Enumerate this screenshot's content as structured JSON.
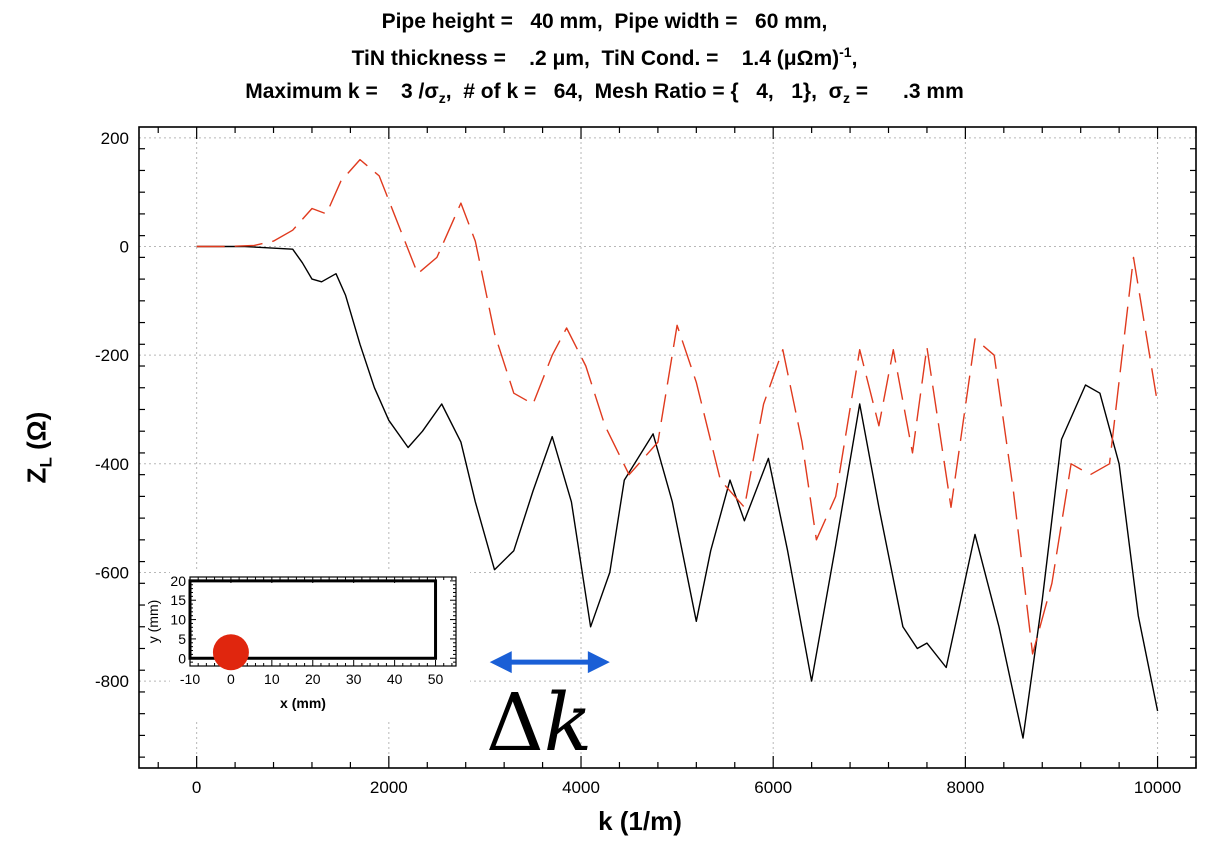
{
  "title": {
    "line1": "Pipe height =   40 mm,  Pipe width =   60 mm,",
    "line2": "TiN thickness =    .2 μm,  TiN Cond. =    1.4 (μΩm)",
    "line2_sup": "-1",
    "line2_end": ",",
    "line3a": "Maximum k =    3 /σ",
    "line3a_sub": "z",
    "line3b": ",  # of k =   64,  Mesh Ratio = {   4,   1},  σ",
    "line3b_sub": "z",
    "line3c": " =      .3 mm"
  },
  "annotation": {
    "delta_symbol": "Δ",
    "k_symbol": "k",
    "arrow_color": "#1a5fd6",
    "x_from": 3050,
    "x_to": 4300,
    "y": -765
  },
  "chart_data": {
    "type": "line",
    "xlabel": "k (1/m)",
    "ylabel_main": "Z",
    "ylabel_sub": "L",
    "ylabel_unit": " (Ω)",
    "xlim": [
      -600,
      10400
    ],
    "ylim": [
      -960,
      220
    ],
    "xticks": [
      0,
      2000,
      4000,
      6000,
      8000,
      10000
    ],
    "yticks": [
      200,
      0,
      -200,
      -400,
      -600,
      -800
    ],
    "grid": true,
    "series": [
      {
        "color": "#000000",
        "style": "solid",
        "x": [
          0,
          500,
          1000,
          1100,
          1200,
          1300,
          1450,
          1550,
          1700,
          1850,
          2000,
          2200,
          2350,
          2550,
          2750,
          2900,
          3100,
          3300,
          3500,
          3700,
          3900,
          4100,
          4300,
          4450,
          4750,
          4950,
          5200,
          5350,
          5550,
          5700,
          5950,
          6150,
          6400,
          6650,
          6900,
          7100,
          7350,
          7500,
          7600,
          7800,
          8100,
          8350,
          8600,
          8800,
          9000,
          9250,
          9400,
          9600,
          9800,
          10000
        ],
        "y": [
          0,
          0,
          -5,
          -30,
          -60,
          -65,
          -50,
          -90,
          -180,
          -260,
          -320,
          -370,
          -340,
          -290,
          -360,
          -470,
          -595,
          -560,
          -450,
          -350,
          -470,
          -700,
          -600,
          -430,
          -345,
          -470,
          -690,
          -560,
          -430,
          -505,
          -390,
          -560,
          -800,
          -550,
          -290,
          -480,
          -700,
          -740,
          -730,
          -775,
          -530,
          -700,
          -905,
          -650,
          -355,
          -255,
          -270,
          -400,
          -680,
          -855
        ]
      },
      {
        "color": "#e03a1e",
        "style": "dash",
        "x": [
          0,
          300,
          600,
          800,
          1000,
          1200,
          1350,
          1500,
          1700,
          1900,
          2100,
          2300,
          2500,
          2750,
          2900,
          3100,
          3300,
          3500,
          3700,
          3850,
          4050,
          4250,
          4500,
          4800,
          5000,
          5200,
          5450,
          5700,
          5900,
          6100,
          6300,
          6450,
          6650,
          6900,
          7100,
          7250,
          7450,
          7600,
          7850,
          8100,
          8300,
          8500,
          8700,
          8900,
          9100,
          9300,
          9500,
          9750,
          10000
        ],
        "y": [
          0,
          0,
          2,
          10,
          30,
          70,
          60,
          120,
          160,
          130,
          40,
          -50,
          -20,
          80,
          10,
          -160,
          -270,
          -290,
          -200,
          -150,
          -220,
          -330,
          -420,
          -360,
          -145,
          -250,
          -430,
          -480,
          -290,
          -190,
          -360,
          -540,
          -460,
          -190,
          -330,
          -190,
          -380,
          -185,
          -480,
          -170,
          -200,
          -450,
          -750,
          -620,
          -400,
          -420,
          -400,
          -20,
          -290
        ]
      }
    ],
    "inset": {
      "type": "cross-section",
      "xlabel": "x (mm)",
      "ylabel": "y (mm)",
      "xlim": [
        -10,
        55
      ],
      "ylim": [
        -2,
        21
      ],
      "xticks": [
        -10,
        0,
        10,
        20,
        30,
        40,
        50
      ],
      "yticks": [
        0,
        5,
        10,
        15,
        20
      ],
      "rect": {
        "x0": -10,
        "x1": 50,
        "y0": 0,
        "y1": 20
      },
      "beam": {
        "x": 0,
        "y": 0,
        "color": "#e0260e"
      }
    }
  }
}
